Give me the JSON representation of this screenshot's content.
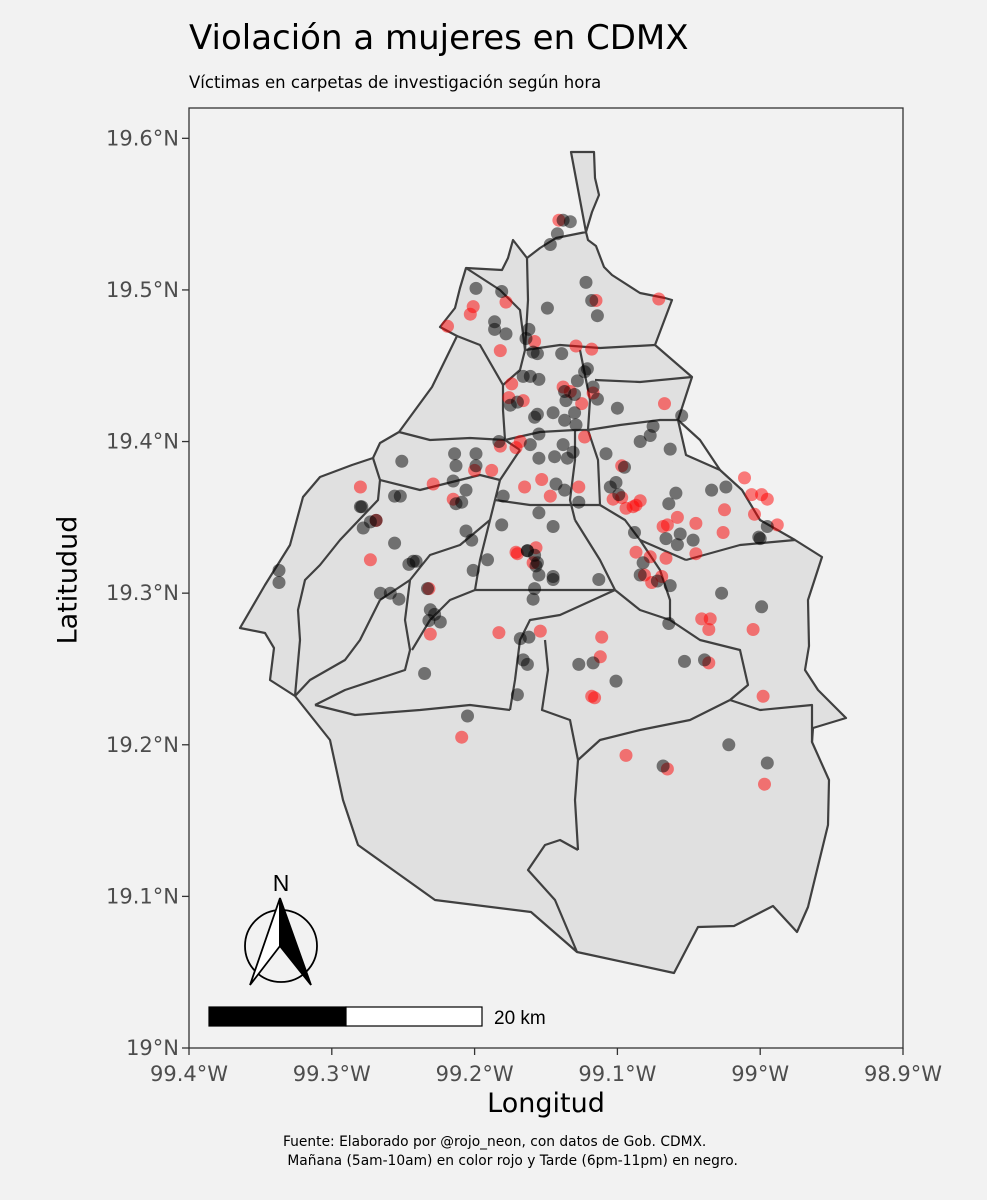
{
  "title": "Violación a mujeres en CDMX",
  "subtitle": "Víctimas en carpetas de investigación según hora",
  "caption": {
    "line1": "Fuente: Elaborado por @rojo_neon, con datos de Gob. CDMX.",
    "line2": " Mañana (5am-10am) en color rojo y Tarde (6pm-11pm) en negro."
  },
  "axes": {
    "xlabel": "Longitud",
    "ylabel": "Latitudud",
    "xlim": [
      -99.4,
      -98.9
    ],
    "ylim": [
      19.0,
      19.62
    ],
    "x_ticks": [
      {
        "value": -99.4,
        "label": "99.4°W"
      },
      {
        "value": -99.3,
        "label": "99.3°W"
      },
      {
        "value": -99.2,
        "label": "99.2°W"
      },
      {
        "value": -99.1,
        "label": "99.1°W"
      },
      {
        "value": -99.0,
        "label": "99°W"
      },
      {
        "value": -98.9,
        "label": "98.9°W"
      }
    ],
    "y_ticks": [
      {
        "value": 19.0,
        "label": "19°N"
      },
      {
        "value": 19.1,
        "label": "19.1°N"
      },
      {
        "value": 19.2,
        "label": "19.2°N"
      },
      {
        "value": 19.3,
        "label": "19.3°N"
      },
      {
        "value": 19.4,
        "label": "19.4°N"
      },
      {
        "value": 19.5,
        "label": "19.5°N"
      },
      {
        "value": 19.6,
        "label": "19.6°N"
      }
    ],
    "grid": false
  },
  "north_arrow_label": "N",
  "scale_bar_label": "20 km",
  "colors": {
    "panel_bg": "#f2f2f2",
    "region_fill": "#e0e0e0",
    "border": "#404040",
    "morning_point": "#ff0000",
    "evening_point": "#000000"
  },
  "chart_data": {
    "type": "scatter",
    "title": "Violación a mujeres en CDMX",
    "xlabel": "Longitud",
    "ylabel": "Latitudud",
    "xlim": [
      -99.4,
      -98.9
    ],
    "ylim": [
      19.0,
      19.62
    ],
    "series": [
      {
        "name": "Mañana (5am-10am)",
        "color": "#ff0000",
        "points": [
          [
            -99.219,
            19.476
          ],
          [
            -99.203,
            19.484
          ],
          [
            -99.201,
            19.489
          ],
          [
            -99.178,
            19.492
          ],
          [
            -99.182,
            19.46
          ],
          [
            -99.141,
            19.546
          ],
          [
            -99.115,
            19.493
          ],
          [
            -99.071,
            19.494
          ],
          [
            -99.158,
            19.466
          ],
          [
            -99.129,
            19.463
          ],
          [
            -99.118,
            19.461
          ],
          [
            -99.174,
            19.438
          ],
          [
            -99.166,
            19.427
          ],
          [
            -99.176,
            19.429
          ],
          [
            -99.138,
            19.436
          ],
          [
            -99.125,
            19.425
          ],
          [
            -99.133,
            19.433
          ],
          [
            -99.117,
            19.432
          ],
          [
            -99.123,
            19.403
          ],
          [
            -99.168,
            19.4
          ],
          [
            -99.171,
            19.396
          ],
          [
            -99.067,
            19.425
          ],
          [
            -99.2,
            19.381
          ],
          [
            -99.182,
            19.397
          ],
          [
            -99.28,
            19.37
          ],
          [
            -99.229,
            19.372
          ],
          [
            -99.269,
            19.348
          ],
          [
            -99.215,
            19.362
          ],
          [
            -99.188,
            19.381
          ],
          [
            -99.165,
            19.37
          ],
          [
            -99.153,
            19.375
          ],
          [
            -99.127,
            19.37
          ],
          [
            -99.147,
            19.364
          ],
          [
            -99.097,
            19.384
          ],
          [
            -99.094,
            19.356
          ],
          [
            -99.097,
            19.363
          ],
          [
            -99.103,
            19.362
          ],
          [
            -99.084,
            19.361
          ],
          [
            -99.089,
            19.357
          ],
          [
            -99.058,
            19.35
          ],
          [
            -99.065,
            19.345
          ],
          [
            -99.045,
            19.326
          ],
          [
            -99.087,
            19.358
          ],
          [
            -99.011,
            19.376
          ],
          [
            -99.025,
            19.355
          ],
          [
            -99.006,
            19.365
          ],
          [
            -99.004,
            19.352
          ],
          [
            -98.995,
            19.362
          ],
          [
            -98.999,
            19.365
          ],
          [
            -98.988,
            19.345
          ],
          [
            -99.026,
            19.34
          ],
          [
            -99.045,
            19.346
          ],
          [
            -99.068,
            19.344
          ],
          [
            -99.087,
            19.327
          ],
          [
            -99.077,
            19.324
          ],
          [
            -99.081,
            19.312
          ],
          [
            -99.066,
            19.323
          ],
          [
            -99.069,
            19.311
          ],
          [
            -99.076,
            19.307
          ],
          [
            -99.157,
            19.33
          ],
          [
            -99.171,
            19.327
          ],
          [
            -99.159,
            19.32
          ],
          [
            -99.17,
            19.326
          ],
          [
            -99.273,
            19.322
          ],
          [
            -99.231,
            19.273
          ],
          [
            -99.232,
            19.303
          ],
          [
            -99.183,
            19.274
          ],
          [
            -99.154,
            19.275
          ],
          [
            -99.111,
            19.271
          ],
          [
            -99.112,
            19.258
          ],
          [
            -99.118,
            19.232
          ],
          [
            -99.116,
            19.231
          ],
          [
            -99.036,
            19.254
          ],
          [
            -99.041,
            19.283
          ],
          [
            -99.035,
            19.283
          ],
          [
            -99.036,
            19.276
          ],
          [
            -99.005,
            19.276
          ],
          [
            -98.998,
            19.232
          ],
          [
            -98.997,
            19.174
          ],
          [
            -99.065,
            19.184
          ],
          [
            -99.094,
            19.193
          ],
          [
            -99.209,
            19.205
          ]
        ]
      },
      {
        "name": "Tarde (6pm-11pm)",
        "color": "#000000",
        "points": [
          [
            -99.138,
            19.546
          ],
          [
            -99.133,
            19.545
          ],
          [
            -99.142,
            19.537
          ],
          [
            -99.147,
            19.53
          ],
          [
            -99.122,
            19.505
          ],
          [
            -99.118,
            19.493
          ],
          [
            -99.114,
            19.483
          ],
          [
            -99.149,
            19.488
          ],
          [
            -99.199,
            19.501
          ],
          [
            -99.181,
            19.499
          ],
          [
            -99.186,
            19.479
          ],
          [
            -99.186,
            19.474
          ],
          [
            -99.178,
            19.471
          ],
          [
            -99.162,
            19.474
          ],
          [
            -99.164,
            19.468
          ],
          [
            -99.156,
            19.458
          ],
          [
            -99.159,
            19.459
          ],
          [
            -99.139,
            19.458
          ],
          [
            -99.128,
            19.44
          ],
          [
            -99.13,
            19.431
          ],
          [
            -99.121,
            19.448
          ],
          [
            -99.123,
            19.446
          ],
          [
            -99.117,
            19.436
          ],
          [
            -99.114,
            19.428
          ],
          [
            -99.137,
            19.433
          ],
          [
            -99.136,
            19.427
          ],
          [
            -99.161,
            19.443
          ],
          [
            -99.155,
            19.441
          ],
          [
            -99.166,
            19.443
          ],
          [
            -99.175,
            19.424
          ],
          [
            -99.17,
            19.426
          ],
          [
            -99.158,
            19.416
          ],
          [
            -99.156,
            19.418
          ],
          [
            -99.145,
            19.419
          ],
          [
            -99.137,
            19.414
          ],
          [
            -99.13,
            19.419
          ],
          [
            -99.129,
            19.411
          ],
          [
            -99.155,
            19.405
          ],
          [
            -99.138,
            19.398
          ],
          [
            -99.161,
            19.398
          ],
          [
            -99.183,
            19.4
          ],
          [
            -99.144,
            19.39
          ],
          [
            -99.135,
            19.389
          ],
          [
            -99.155,
            19.389
          ],
          [
            -99.143,
            19.372
          ],
          [
            -99.101,
            19.373
          ],
          [
            -99.108,
            19.392
          ],
          [
            -99.095,
            19.383
          ],
          [
            -99.077,
            19.404
          ],
          [
            -99.075,
            19.41
          ],
          [
            -99.1,
            19.422
          ],
          [
            -99.063,
            19.395
          ],
          [
            -99.055,
            19.417
          ],
          [
            -99.084,
            19.4
          ],
          [
            -99.131,
            19.393
          ],
          [
            -99.18,
            19.364
          ],
          [
            -99.199,
            19.384
          ],
          [
            -99.214,
            19.392
          ],
          [
            -99.213,
            19.384
          ],
          [
            -99.215,
            19.374
          ],
          [
            -99.199,
            19.392
          ],
          [
            -99.251,
            19.387
          ],
          [
            -99.256,
            19.364
          ],
          [
            -99.252,
            19.364
          ],
          [
            -99.269,
            19.348
          ],
          [
            -99.273,
            19.347
          ],
          [
            -99.278,
            19.343
          ],
          [
            -99.279,
            19.357
          ],
          [
            -99.206,
            19.368
          ],
          [
            -99.209,
            19.36
          ],
          [
            -99.213,
            19.359
          ],
          [
            -99.243,
            19.321
          ],
          [
            -99.241,
            19.321
          ],
          [
            -99.256,
            19.333
          ],
          [
            -99.246,
            19.319
          ],
          [
            -99.206,
            19.341
          ],
          [
            -99.181,
            19.345
          ],
          [
            -99.202,
            19.335
          ],
          [
            -99.191,
            19.322
          ],
          [
            -99.201,
            19.315
          ],
          [
            -99.163,
            19.328
          ],
          [
            -99.158,
            19.325
          ],
          [
            -99.163,
            19.328
          ],
          [
            -99.157,
            19.318
          ],
          [
            -99.156,
            19.32
          ],
          [
            -99.155,
            19.312
          ],
          [
            -99.145,
            19.311
          ],
          [
            -99.145,
            19.309
          ],
          [
            -99.158,
            19.303
          ],
          [
            -99.159,
            19.296
          ],
          [
            -99.145,
            19.344
          ],
          [
            -99.155,
            19.353
          ],
          [
            -99.137,
            19.368
          ],
          [
            -99.127,
            19.36
          ],
          [
            -99.099,
            19.365
          ],
          [
            -99.105,
            19.37
          ],
          [
            -99.088,
            19.34
          ],
          [
            -99.064,
            19.359
          ],
          [
            -99.059,
            19.366
          ],
          [
            -99.056,
            19.339
          ],
          [
            -99.058,
            19.332
          ],
          [
            -99.047,
            19.335
          ],
          [
            -99.066,
            19.336
          ],
          [
            -99.082,
            19.32
          ],
          [
            -99.084,
            19.312
          ],
          [
            -99.072,
            19.308
          ],
          [
            -99.063,
            19.305
          ],
          [
            -99.034,
            19.368
          ],
          [
            -99.024,
            19.37
          ],
          [
            -99.0,
            19.336
          ],
          [
            -99.001,
            19.337
          ],
          [
            -98.995,
            19.344
          ],
          [
            -99.027,
            19.3
          ],
          [
            -98.999,
            19.291
          ],
          [
            -99.064,
            19.28
          ],
          [
            -99.039,
            19.256
          ],
          [
            -99.053,
            19.255
          ],
          [
            -99.117,
            19.254
          ],
          [
            -99.113,
            19.309
          ],
          [
            -99.101,
            19.242
          ],
          [
            -99.068,
            19.186
          ],
          [
            -99.022,
            19.2
          ],
          [
            -98.995,
            19.188
          ],
          [
            -99.233,
            19.303
          ],
          [
            -99.231,
            19.289
          ],
          [
            -99.228,
            19.286
          ],
          [
            -99.232,
            19.282
          ],
          [
            -99.224,
            19.281
          ],
          [
            -99.235,
            19.247
          ],
          [
            -99.205,
            19.219
          ],
          [
            -99.168,
            19.27
          ],
          [
            -99.162,
            19.271
          ],
          [
            -99.166,
            19.256
          ],
          [
            -99.163,
            19.253
          ],
          [
            -99.17,
            19.233
          ],
          [
            -99.127,
            19.253
          ],
          [
            -99.259,
            19.3
          ],
          [
            -99.266,
            19.3
          ],
          [
            -99.253,
            19.296
          ],
          [
            -99.337,
            19.315
          ],
          [
            -99.337,
            19.307
          ],
          [
            -99.28,
            19.357
          ]
        ]
      }
    ]
  }
}
